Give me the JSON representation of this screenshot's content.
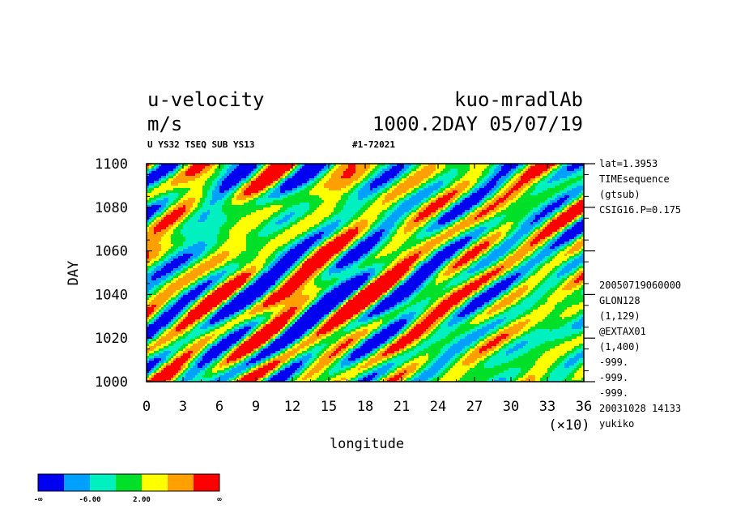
{
  "header": {
    "title_left": "u-velocity",
    "title_right": "kuo-mradlAb",
    "units": "m/s",
    "run_info": "1000.2DAY 05/07/19",
    "sub_left": "U YS32 TSEQ SUB YS13",
    "sub_right": "#1-72021"
  },
  "side_info_top": [
    "lat=1.3953",
    "TIMEsequence",
    "(gtsub)",
    "CSIG16.P=0.175"
  ],
  "side_info_bottom": [
    "20050719060000",
    "GLON128",
    "(1,129)",
    "@EXTAX01",
    "(1,400)",
    "-999.",
    "-999.",
    "-999.",
    "20031028  14133",
    "yukiko"
  ],
  "colors": {
    "levels": [
      "#0000f0",
      "#00a0ff",
      "#00f0c0",
      "#00e028",
      "#ffff00",
      "#ffa000",
      "#ff0000"
    ]
  },
  "colorbar": {
    "labels": [
      "-∞",
      "-6.00",
      "2.00",
      "∞"
    ]
  },
  "chart_data": {
    "type": "heatmap",
    "xlabel": "longitude",
    "ylabel": "DAY",
    "x_multiplier": "(×10)",
    "x_ticks": [
      "0",
      "3",
      "6",
      "9",
      "12",
      "15",
      "18",
      "21",
      "24",
      "27",
      "30",
      "33",
      "36"
    ],
    "y_ticks": [
      "1000",
      "1020",
      "1040",
      "1060",
      "1080",
      "1100"
    ],
    "xlim": [
      0,
      36
    ],
    "ylim": [
      1000,
      1100
    ],
    "x_unit_scale": 10,
    "contour_levels": [
      -6.0,
      2.0
    ],
    "colorbar_levels": 7
  }
}
